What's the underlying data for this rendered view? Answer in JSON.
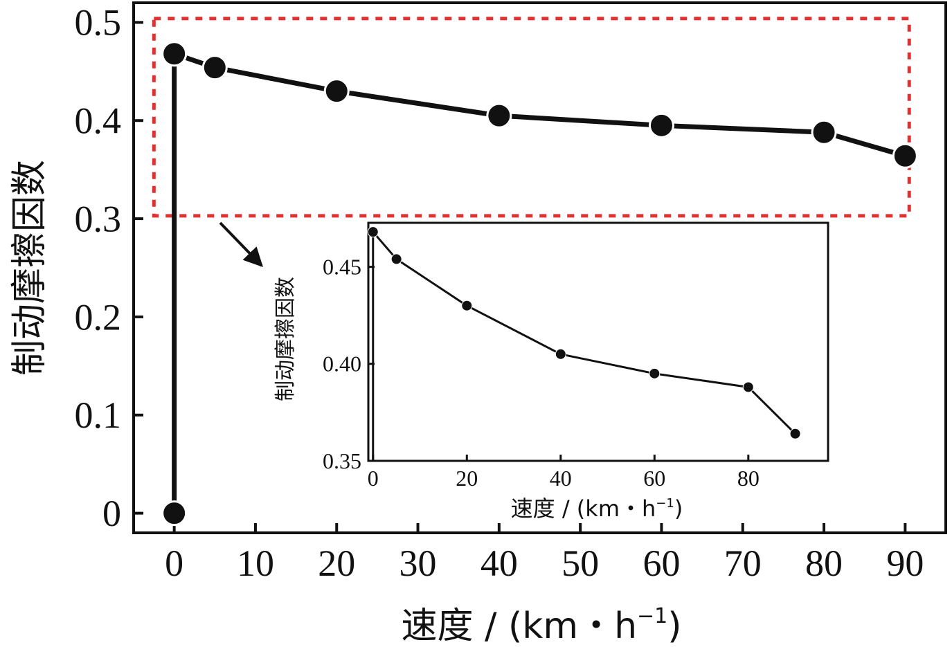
{
  "chart_data": [
    {
      "type": "line",
      "role": "main",
      "x": [
        0,
        0,
        5,
        20,
        40,
        60,
        80,
        90
      ],
      "series": [
        {
          "values": [
            0,
            0.468,
            0.454,
            0.43,
            0.405,
            0.395,
            0.388,
            0.364
          ]
        }
      ],
      "xticks": [
        0,
        10,
        20,
        30,
        40,
        50,
        60,
        70,
        80,
        90
      ],
      "xtick_labels": [
        "0",
        "10",
        "20",
        "30",
        "40",
        "50",
        "60",
        "70",
        "80",
        "90"
      ],
      "yticks": [
        0,
        0.1,
        0.2,
        0.3,
        0.4,
        0.5
      ],
      "ytick_labels": [
        "0",
        "0.1",
        "0.2",
        "0.3",
        "0.4",
        "0.5"
      ],
      "xlim": [
        -5,
        95
      ],
      "ylim": [
        -0.02,
        0.52
      ],
      "xlabel": "速度 / (km・h",
      "xlabel_sup": "−1",
      "xlabel_close": ")",
      "ylabel": "制动摩擦因数",
      "highlight_box": {
        "x": [
          -2.5,
          90.5
        ],
        "y": [
          0.303,
          0.504
        ],
        "color": "#e03030"
      },
      "grid": false
    },
    {
      "type": "line",
      "role": "inset",
      "x": [
        0,
        0,
        5,
        20,
        40,
        60,
        80,
        90
      ],
      "series": [
        {
          "values": [
            0.35,
            0.468,
            0.454,
            0.43,
            0.405,
            0.395,
            0.388,
            0.364
          ]
        }
      ],
      "xticks": [
        0,
        20,
        40,
        60,
        80
      ],
      "xtick_labels": [
        "0",
        "20",
        "40",
        "60",
        "80"
      ],
      "yticks": [
        0.35,
        0.4,
        0.45
      ],
      "ytick_labels": [
        "0.35",
        "0.40",
        "0.45"
      ],
      "xlim": [
        -1,
        97
      ],
      "ylim": [
        0.35,
        0.4727
      ],
      "xlabel": "速度 / (km・h",
      "xlabel_sup": "−1",
      "xlabel_close": ")",
      "ylabel": "制动摩擦因数",
      "grid": false
    }
  ]
}
